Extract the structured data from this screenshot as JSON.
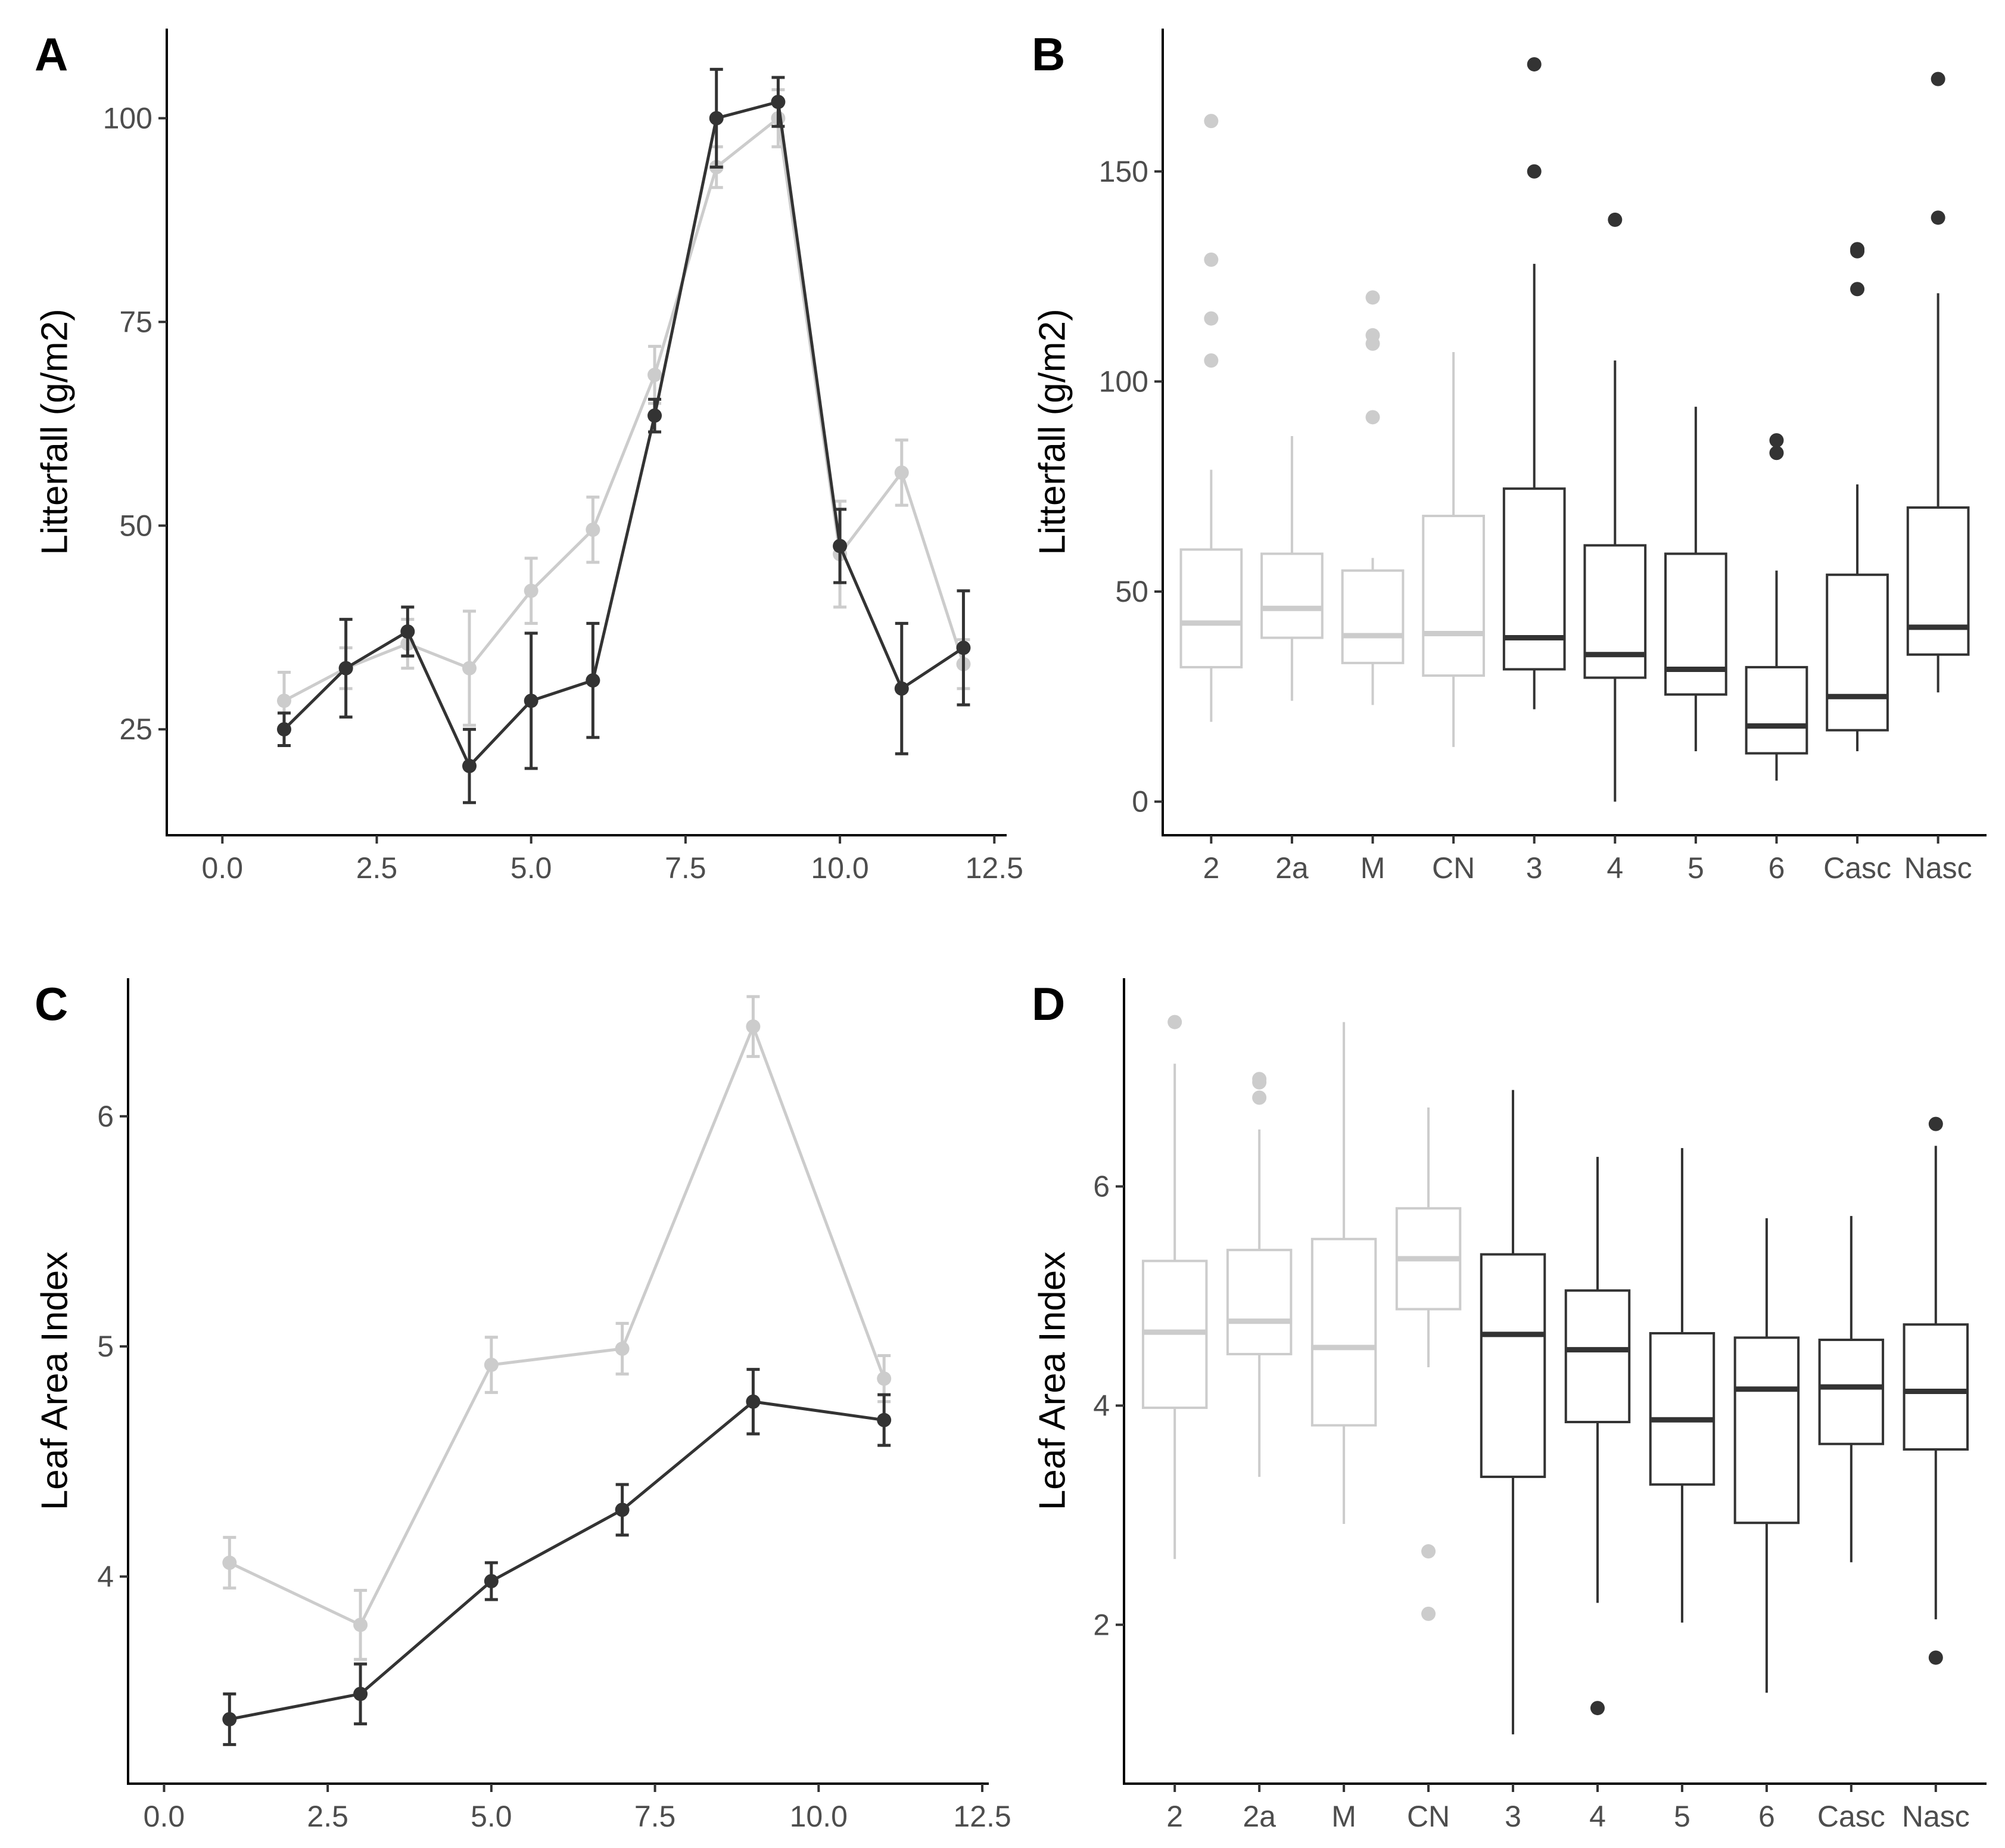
{
  "colors": {
    "dark": "#333333",
    "light": "#cccccc",
    "axis": "#000000",
    "tick_text": "#4d4d4d"
  },
  "chart_data": [
    {
      "panel": "A",
      "type": "line",
      "xlabel": "",
      "ylabel": "Litterfall (g/m2)",
      "xlim": [
        -0.9,
        12.7
      ],
      "ylim": [
        12,
        111
      ],
      "xticks": [
        0,
        2.5,
        5,
        7.5,
        10,
        12.5
      ],
      "xtick_labels": [
        "0.0",
        "2.5",
        "5.0",
        "7.5",
        "10.0",
        "12.5"
      ],
      "yticks": [
        25,
        50,
        75,
        100
      ],
      "ytick_labels": [
        "25",
        "50",
        "75",
        "100"
      ],
      "grid": false,
      "series": [
        {
          "color": "dark",
          "x": [
            1,
            2,
            3,
            4,
            5,
            6,
            7,
            8,
            9,
            10,
            11,
            12
          ],
          "y": [
            25,
            32.5,
            37,
            20.5,
            28.5,
            31,
            63.5,
            100,
            102,
            47.5,
            30,
            35
          ],
          "err": [
            2,
            6,
            3,
            4.5,
            8.3,
            7,
            2,
            6,
            3,
            4.5,
            8,
            7
          ]
        },
        {
          "color": "light",
          "x": [
            1,
            2,
            3,
            4,
            5,
            6,
            7,
            8,
            9,
            10,
            11,
            12
          ],
          "y": [
            28.5,
            32.5,
            35.5,
            32.5,
            42,
            49.5,
            68.5,
            94,
            100,
            46.5,
            56.5,
            33
          ],
          "err": [
            3.5,
            2.5,
            3,
            7,
            4,
            4,
            3.5,
            2.5,
            3.5,
            6.5,
            4,
            3
          ]
        }
      ]
    },
    {
      "panel": "B",
      "type": "box",
      "xlabel": "",
      "ylabel": "Litterfall (g/m2)",
      "ylim": [
        -8,
        184
      ],
      "yticks": [
        0,
        50,
        100,
        150
      ],
      "ytick_labels": [
        "0",
        "50",
        "100",
        "150"
      ],
      "grid": false,
      "categories": [
        "2",
        "2a",
        "M",
        "CN",
        "3",
        "4",
        "5",
        "6",
        "Casc",
        "Nasc"
      ],
      "boxes": [
        {
          "color": "light",
          "lower": 19,
          "q1": 32,
          "median": 42.5,
          "q3": 60,
          "upper": 79,
          "outliers": [
            105,
            115,
            129,
            162
          ]
        },
        {
          "color": "light",
          "lower": 24,
          "q1": 39,
          "median": 46,
          "q3": 59,
          "upper": 87,
          "outliers": []
        },
        {
          "color": "light",
          "lower": 23,
          "q1": 33,
          "median": 39.5,
          "q3": 55,
          "upper": 58,
          "outliers": [
            91.5,
            109,
            111,
            120
          ]
        },
        {
          "color": "light",
          "lower": 13,
          "q1": 30,
          "median": 40,
          "q3": 68,
          "upper": 107,
          "outliers": []
        },
        {
          "color": "dark",
          "lower": 22,
          "q1": 31.5,
          "median": 39,
          "q3": 74.5,
          "upper": 128,
          "outliers": [
            150,
            175.5
          ]
        },
        {
          "color": "dark",
          "lower": 0,
          "q1": 29.5,
          "median": 35,
          "q3": 61,
          "upper": 105,
          "outliers": [
            138.5
          ]
        },
        {
          "color": "dark",
          "lower": 12,
          "q1": 25.5,
          "median": 31.5,
          "q3": 59,
          "upper": 94,
          "outliers": []
        },
        {
          "color": "dark",
          "lower": 5,
          "q1": 11.5,
          "median": 18,
          "q3": 32,
          "upper": 55,
          "outliers": [
            83,
            86
          ]
        },
        {
          "color": "dark",
          "lower": 12,
          "q1": 17,
          "median": 25,
          "q3": 54,
          "upper": 75.5,
          "outliers": [
            122,
            131,
            131.5
          ]
        },
        {
          "color": "dark",
          "lower": 26,
          "q1": 35,
          "median": 41.5,
          "q3": 70,
          "upper": 121,
          "outliers": [
            139,
            172
          ]
        }
      ]
    },
    {
      "panel": "C",
      "type": "line",
      "xlabel": "",
      "ylabel": "Leaf Area Index",
      "xlim": [
        -0.55,
        12.6
      ],
      "ylim": [
        3.1,
        6.6
      ],
      "xticks": [
        0,
        2.5,
        5,
        7.5,
        10,
        12.5
      ],
      "xtick_labels": [
        "0.0",
        "2.5",
        "5.0",
        "7.5",
        "10.0",
        "12.5"
      ],
      "yticks": [
        4,
        5,
        6
      ],
      "ytick_labels": [
        "4",
        "5",
        "6"
      ],
      "grid": false,
      "series": [
        {
          "color": "dark",
          "x": [
            1,
            3,
            5,
            7,
            9,
            11
          ],
          "y": [
            3.38,
            3.49,
            3.98,
            4.29,
            4.76,
            4.68
          ],
          "err": [
            0.11,
            0.13,
            0.08,
            0.11,
            0.14,
            0.11
          ]
        },
        {
          "color": "light",
          "x": [
            1,
            3,
            5,
            7,
            9,
            11
          ],
          "y": [
            4.06,
            3.79,
            4.92,
            4.99,
            6.39,
            4.86
          ],
          "err": [
            0.11,
            0.15,
            0.12,
            0.11,
            0.13,
            0.1
          ]
        }
      ]
    },
    {
      "panel": "D",
      "type": "box",
      "xlabel": "",
      "ylabel": "Leaf Area Index",
      "ylim": [
        0.55,
        7.9
      ],
      "yticks": [
        2,
        4,
        6
      ],
      "ytick_labels": [
        "2",
        "4",
        "6"
      ],
      "grid": false,
      "categories": [
        "2",
        "2a",
        "M",
        "CN",
        "3",
        "4",
        "5",
        "6",
        "Casc",
        "Nasc"
      ],
      "boxes": [
        {
          "color": "light",
          "lower": 2.6,
          "q1": 3.98,
          "median": 4.67,
          "q3": 5.32,
          "upper": 7.12,
          "outliers": [
            7.5
          ]
        },
        {
          "color": "light",
          "lower": 3.35,
          "q1": 4.47,
          "median": 4.77,
          "q3": 5.42,
          "upper": 6.52,
          "outliers": [
            6.81,
            6.95,
            6.98
          ]
        },
        {
          "color": "light",
          "lower": 2.92,
          "q1": 3.82,
          "median": 4.53,
          "q3": 5.52,
          "upper": 7.5,
          "outliers": []
        },
        {
          "color": "light",
          "lower": 4.35,
          "q1": 4.88,
          "median": 5.34,
          "q3": 5.8,
          "upper": 6.72,
          "outliers": [
            2.1,
            2.67
          ]
        },
        {
          "color": "dark",
          "lower": 1.0,
          "q1": 3.35,
          "median": 4.65,
          "q3": 5.38,
          "upper": 6.88,
          "outliers": []
        },
        {
          "color": "dark",
          "lower": 2.2,
          "q1": 3.85,
          "median": 4.51,
          "q3": 5.05,
          "upper": 6.27,
          "outliers": [
            1.24
          ]
        },
        {
          "color": "dark",
          "lower": 2.02,
          "q1": 3.28,
          "median": 3.87,
          "q3": 4.66,
          "upper": 6.35,
          "outliers": []
        },
        {
          "color": "dark",
          "lower": 1.38,
          "q1": 2.93,
          "median": 4.15,
          "q3": 4.62,
          "upper": 5.71,
          "outliers": []
        },
        {
          "color": "dark",
          "lower": 2.57,
          "q1": 3.65,
          "median": 4.17,
          "q3": 4.6,
          "upper": 5.73,
          "outliers": []
        },
        {
          "color": "dark",
          "lower": 2.05,
          "q1": 3.6,
          "median": 4.13,
          "q3": 4.74,
          "upper": 6.37,
          "outliers": [
            1.7,
            6.57
          ]
        }
      ]
    }
  ]
}
